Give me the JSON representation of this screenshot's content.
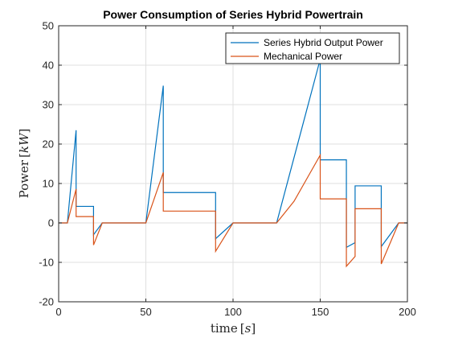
{
  "chart_data": {
    "type": "line",
    "title": "Power Consumption of Series Hybrid Powertrain",
    "xlabel": {
      "main": "time",
      "unit": "s"
    },
    "ylabel": {
      "main": "Power",
      "unit": "kW"
    },
    "xlim": [
      0,
      200
    ],
    "ylim": [
      -20,
      50
    ],
    "xticks": [
      0,
      50,
      100,
      150,
      200
    ],
    "yticks": [
      -20,
      -10,
      0,
      10,
      20,
      30,
      40,
      50
    ],
    "grid": true,
    "legend_position": "top-right",
    "series": [
      {
        "name": "Series Hybrid Output Power",
        "color": "#0072BD",
        "x": [
          0,
          5,
          10,
          10,
          20,
          20,
          25,
          50,
          60,
          60,
          90,
          90,
          100,
          125,
          150,
          150,
          165,
          165,
          170,
          170,
          185,
          185,
          195,
          200
        ],
        "y": [
          0,
          0,
          23.5,
          4.2,
          4.2,
          -3.0,
          0,
          0,
          34.8,
          7.7,
          7.7,
          -4.0,
          0,
          0,
          41.5,
          16.0,
          16.0,
          -6.2,
          -5.0,
          9.4,
          9.4,
          -6.0,
          0,
          0
        ]
      },
      {
        "name": "Mechanical Power",
        "color": "#D95319",
        "x": [
          0,
          5,
          10,
          10,
          20,
          20,
          25,
          50,
          60,
          60,
          90,
          90,
          100,
          125,
          135,
          150,
          150,
          165,
          165,
          170,
          170,
          185,
          185,
          195,
          200
        ],
        "y": [
          0,
          0,
          8.6,
          1.6,
          1.6,
          -5.6,
          0,
          0,
          12.8,
          3.0,
          3.0,
          -7.2,
          0,
          0,
          5.5,
          17.2,
          6.1,
          6.1,
          -11.0,
          -8.5,
          3.6,
          3.6,
          -10.4,
          0,
          0
        ]
      }
    ]
  }
}
